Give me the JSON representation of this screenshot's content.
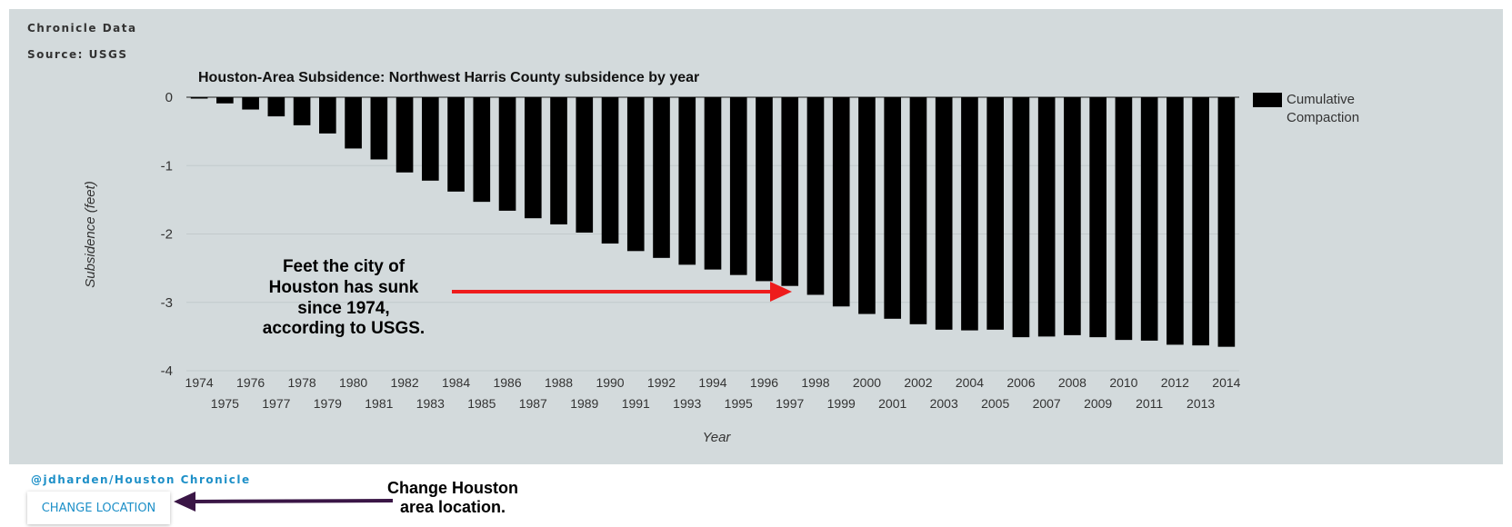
{
  "header": {
    "brand": "Chronicle Data",
    "source": "Source: USGS"
  },
  "colors": {
    "panel_bg": "#d3dadc",
    "bar": "#000000",
    "arrow_red": "#ee1c1c",
    "arrow_purple": "#3a1646",
    "link_blue": "#1e90c8",
    "text_dark": "#333333"
  },
  "chart_data": {
    "type": "bar",
    "title": "Houston-Area Subsidence: Northwest Harris County subsidence by year",
    "xlabel": "Year",
    "ylabel": "Subsidence (feet)",
    "ylim": [
      -4,
      0
    ],
    "yticks": [
      0,
      -1,
      -2,
      -3,
      -4
    ],
    "grid": true,
    "legend": {
      "position": "right",
      "entries": [
        "Cumulative Compaction"
      ]
    },
    "categories": [
      "1974",
      "1975",
      "1976",
      "1977",
      "1978",
      "1979",
      "1980",
      "1981",
      "1982",
      "1983",
      "1984",
      "1985",
      "1986",
      "1987",
      "1988",
      "1989",
      "1990",
      "1991",
      "1992",
      "1993",
      "1994",
      "1995",
      "1996",
      "1997",
      "1998",
      "1999",
      "2000",
      "2001",
      "2002",
      "2003",
      "2004",
      "2005",
      "2006",
      "2007",
      "2008",
      "2009",
      "2010",
      "2011",
      "2012",
      "2013",
      "2014"
    ],
    "series": [
      {
        "name": "Cumulative Compaction",
        "values": [
          -0.02,
          -0.09,
          -0.18,
          -0.28,
          -0.41,
          -0.53,
          -0.75,
          -0.91,
          -1.1,
          -1.22,
          -1.38,
          -1.53,
          -1.66,
          -1.77,
          -1.86,
          -1.98,
          -2.14,
          -2.25,
          -2.35,
          -2.45,
          -2.52,
          -2.6,
          -2.69,
          -2.76,
          -2.89,
          -3.06,
          -3.17,
          -3.24,
          -3.32,
          -3.4,
          -3.41,
          -3.4,
          -3.51,
          -3.5,
          -3.48,
          -3.51,
          -3.55,
          -3.56,
          -3.62,
          -3.63,
          -3.65
        ]
      }
    ]
  },
  "annotations": {
    "sunk_lines": [
      "Feet the city of",
      "Houston has sunk",
      "since 1974,",
      "according to USGS."
    ],
    "change_lines": [
      "Change Houston",
      "area location."
    ]
  },
  "footer": {
    "credit": "@jdharden/Houston Chronicle",
    "change_location_label": "CHANGE LOCATION"
  }
}
